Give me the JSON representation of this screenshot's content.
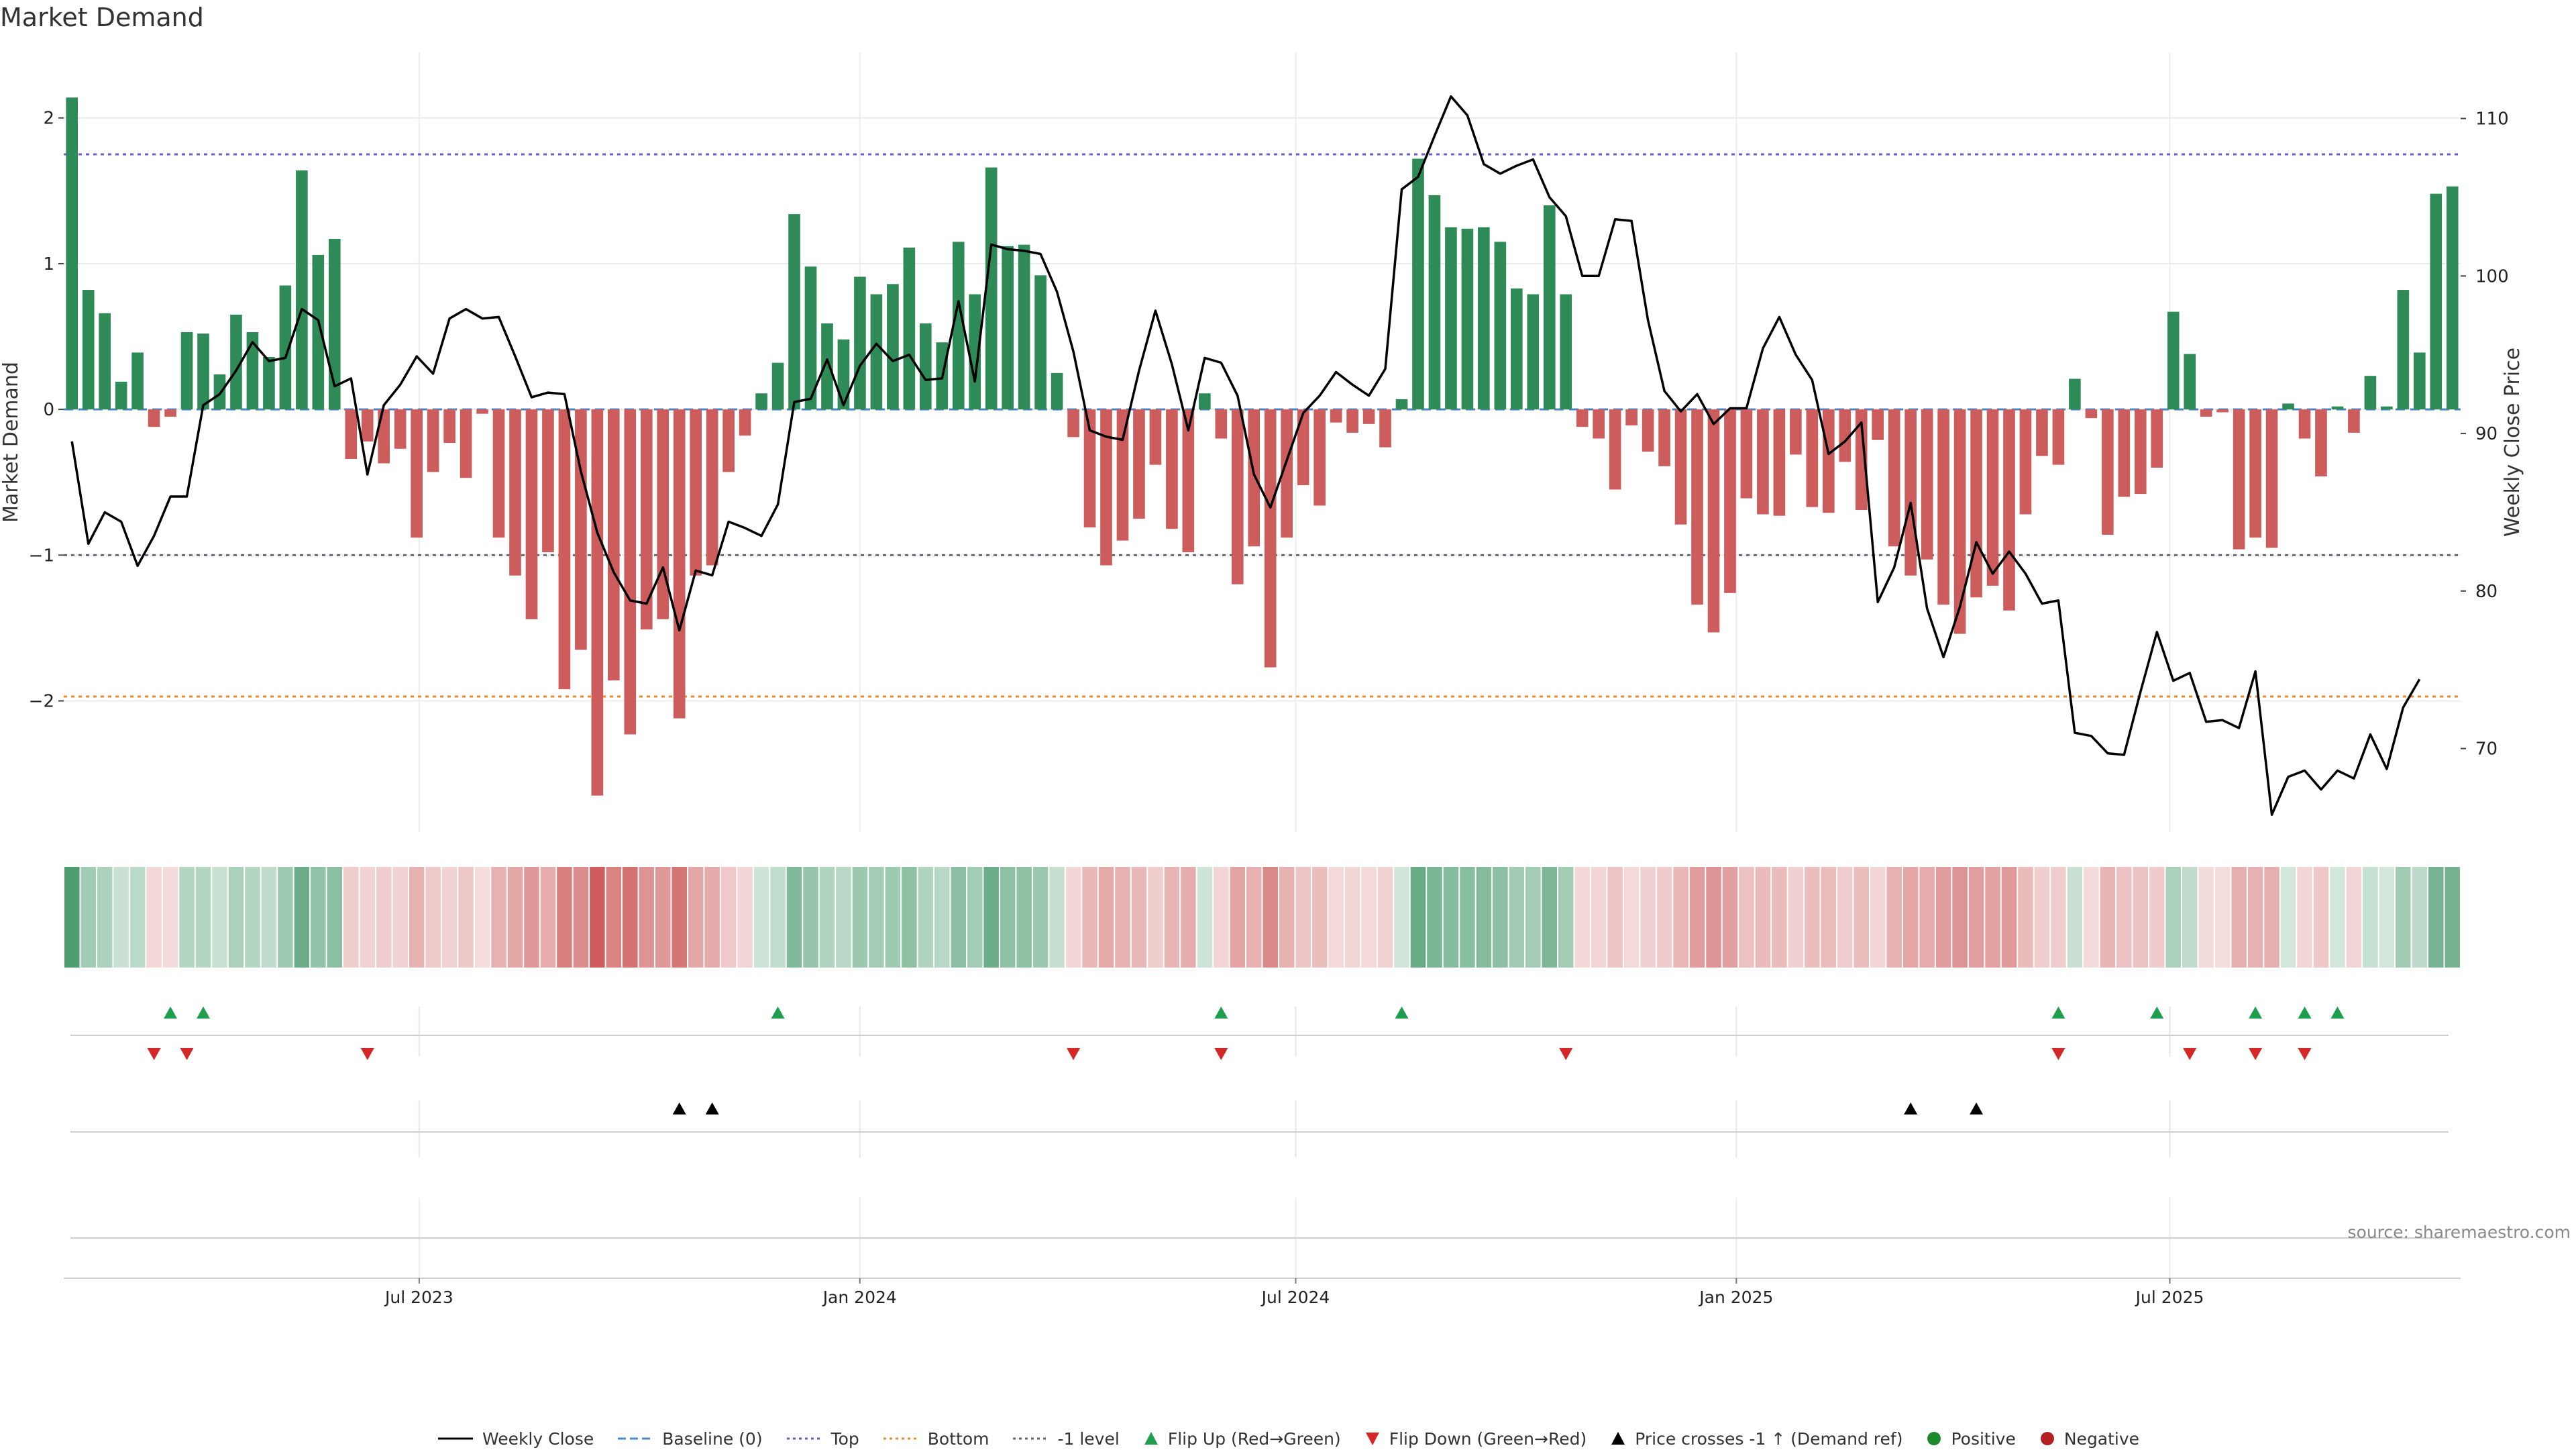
{
  "page": {
    "title": "Market Demand",
    "source": "source: sharemaestro.com"
  },
  "chart_data": {
    "type": "bar",
    "title": "Market Demand",
    "ylabel": "Market Demand",
    "y2label": "Weekly Close Price",
    "ylim": [
      -2.9,
      2.45
    ],
    "y2lim": [
      64.7,
      114.2
    ],
    "yticks": [
      2,
      1,
      0,
      -1,
      -2
    ],
    "ytick_labels": [
      "2",
      "1",
      "0",
      "−1",
      "−2"
    ],
    "y2ticks": [
      110,
      100,
      90,
      80,
      70
    ],
    "y2tick_labels": [
      "110",
      "100",
      "90",
      "80",
      "70"
    ],
    "x_start": "2023-02-06",
    "x_end": "2025-10-27",
    "xticks": [
      "2023-07-01",
      "2024-01-01",
      "2024-07-01",
      "2025-01-01",
      "2025-07-01"
    ],
    "xtick_labels": [
      "Jul 2023",
      "Jan 2024",
      "Jul 2024",
      "Jan 2025",
      "Jul 2025"
    ],
    "reference_lines": [
      {
        "name": "Top",
        "value": 1.75,
        "color": "#6a5acd",
        "style": "dotted"
      },
      {
        "name": "Bottom",
        "value": -1.97,
        "color": "#e8892b",
        "style": "dotted"
      },
      {
        "name": "-1 level",
        "value": -1.0,
        "color": "#666677",
        "style": "dotted"
      },
      {
        "name": "Baseline (0)",
        "value": 0,
        "color": "#4a86c5",
        "style": "dashed"
      }
    ],
    "series": [
      {
        "name": "Market Demand",
        "kind": "bar",
        "colors": {
          "positive": "#2e8b57",
          "negative": "#cd5c5c"
        },
        "values": [
          2.14,
          0.82,
          0.66,
          0.19,
          0.39,
          -0.12,
          -0.05,
          0.53,
          0.52,
          0.24,
          0.65,
          0.53,
          0.36,
          0.85,
          1.64,
          1.06,
          1.17,
          -0.34,
          -0.22,
          -0.37,
          -0.27,
          -0.88,
          -0.43,
          -0.23,
          -0.47,
          -0.03,
          -0.88,
          -1.14,
          -1.44,
          -0.98,
          -1.92,
          -1.65,
          -2.65,
          -1.86,
          -2.23,
          -1.51,
          -1.44,
          -2.12,
          -1.14,
          -1.07,
          -0.43,
          -0.18,
          0.11,
          0.32,
          1.34,
          0.98,
          0.59,
          0.48,
          0.91,
          0.79,
          0.86,
          1.11,
          0.59,
          0.46,
          1.15,
          0.79,
          1.66,
          1.12,
          1.13,
          0.92,
          0.25,
          -0.19,
          -0.81,
          -1.07,
          -0.9,
          -0.75,
          -0.38,
          -0.82,
          -0.98,
          0.11,
          -0.2,
          -1.2,
          -0.94,
          -1.77,
          -0.88,
          -0.52,
          -0.66,
          -0.09,
          -0.16,
          -0.1,
          -0.26,
          0.07,
          1.72,
          1.47,
          1.25,
          1.24,
          1.25,
          1.15,
          0.83,
          0.79,
          1.4,
          0.79,
          -0.12,
          -0.2,
          -0.55,
          -0.11,
          -0.29,
          -0.39,
          -0.79,
          -1.34,
          -1.53,
          -1.26,
          -0.61,
          -0.72,
          -0.73,
          -0.31,
          -0.67,
          -0.71,
          -0.36,
          -0.69,
          -0.21,
          -0.94,
          -1.14,
          -1.03,
          -1.34,
          -1.54,
          -1.29,
          -1.21,
          -1.38,
          -0.72,
          -0.32,
          -0.38,
          0.21,
          -0.06,
          -0.86,
          -0.6,
          -0.58,
          -0.4,
          0.67,
          0.38,
          -0.05,
          -0.02,
          -0.96,
          -0.88,
          -0.95,
          0.04,
          -0.2,
          -0.46,
          0.02,
          -0.16,
          0.23,
          0.02,
          0.82,
          0.39,
          1.48,
          1.53
        ]
      },
      {
        "name": "Weekly Close",
        "kind": "line",
        "color": "#000000",
        "values": [
          89.5,
          83.0,
          85.0,
          84.4,
          81.6,
          83.5,
          86.0,
          86.0,
          91.8,
          92.5,
          94.0,
          95.8,
          94.6,
          94.8,
          97.9,
          97.2,
          93.0,
          93.5,
          87.4,
          91.8,
          93.1,
          94.9,
          93.8,
          97.3,
          97.9,
          97.3,
          97.4,
          94.9,
          92.3,
          92.6,
          92.5,
          87.6,
          83.7,
          81.2,
          79.4,
          79.2,
          81.5,
          77.5,
          81.3,
          81.0,
          84.4,
          84.0,
          83.5,
          85.5,
          92.0,
          92.2,
          94.7,
          91.8,
          94.3,
          95.7,
          94.6,
          95.0,
          93.4,
          93.5,
          98.4,
          93.3,
          102.0,
          101.7,
          101.6,
          101.4,
          99.0,
          95.2,
          90.2,
          89.8,
          89.6,
          94.0,
          97.8,
          94.4,
          90.2,
          94.8,
          94.5,
          92.4,
          87.4,
          85.3,
          88.3,
          91.3,
          92.4,
          93.9,
          93.1,
          92.4,
          94.1,
          105.5,
          106.3,
          108.9,
          111.4,
          110.2,
          107.1,
          106.5,
          107.0,
          107.4,
          105.0,
          103.8,
          100.0,
          100.0,
          103.6,
          103.5,
          97.2,
          92.7,
          91.4,
          92.5,
          90.6,
          91.6,
          91.6,
          95.4,
          97.4,
          95.0,
          93.4,
          88.7,
          89.5,
          90.7,
          79.3,
          81.5,
          85.6,
          78.9,
          75.8,
          79.0,
          83.1,
          81.1,
          82.5,
          81.1,
          79.2,
          79.4,
          71.0,
          70.8,
          69.7,
          69.6,
          73.6,
          77.4,
          74.3,
          74.8,
          71.7,
          71.8,
          71.3,
          74.9,
          65.8,
          68.2,
          68.6,
          67.4,
          68.6,
          68.1,
          70.9,
          68.7,
          72.6,
          74.4
        ]
      }
    ],
    "heat_strip": {
      "name": "Demand heat strip",
      "positive_color": "#2e8b57",
      "negative_color": "#cd5c5c"
    },
    "events": {
      "flip_up": {
        "label": "Flip Up (Red→Green)",
        "color": "#1f9e4e",
        "indices": [
          6,
          8,
          43,
          70,
          81,
          121,
          127,
          133,
          136,
          138
        ]
      },
      "flip_down": {
        "label": "Flip Down (Green→Red)",
        "color": "#d62728",
        "indices": [
          5,
          7,
          18,
          61,
          70,
          91,
          121,
          129,
          133,
          136
        ]
      },
      "price_cross": {
        "label": "Price crosses -1 ↑ (Demand ref)",
        "color": "#000000",
        "indices": [
          37,
          39,
          112,
          116
        ]
      }
    },
    "legend": {
      "position": "bottom",
      "items": [
        {
          "label": "Weekly Close",
          "symbol": "line",
          "color": "#000000"
        },
        {
          "label": "Baseline (0)",
          "symbol": "dashed",
          "color": "#4a86c5"
        },
        {
          "label": "Top",
          "symbol": "dotted",
          "color": "#6a5acd"
        },
        {
          "label": "Bottom",
          "symbol": "dotted",
          "color": "#e8892b"
        },
        {
          "label": "-1 level",
          "symbol": "dotted",
          "color": "#666677"
        },
        {
          "label": "Flip Up (Red→Green)",
          "symbol": "triangle-up",
          "color": "#1f9e4e"
        },
        {
          "label": "Flip Down (Green→Red)",
          "symbol": "triangle-down",
          "color": "#d62728"
        },
        {
          "label": "Price crosses -1 ↑ (Demand ref)",
          "symbol": "triangle-up",
          "color": "#000000"
        },
        {
          "label": "Positive",
          "symbol": "circle",
          "color": "#1f8a2a"
        },
        {
          "label": "Negative",
          "symbol": "circle",
          "color": "#b22222"
        }
      ]
    },
    "grid": true
  }
}
